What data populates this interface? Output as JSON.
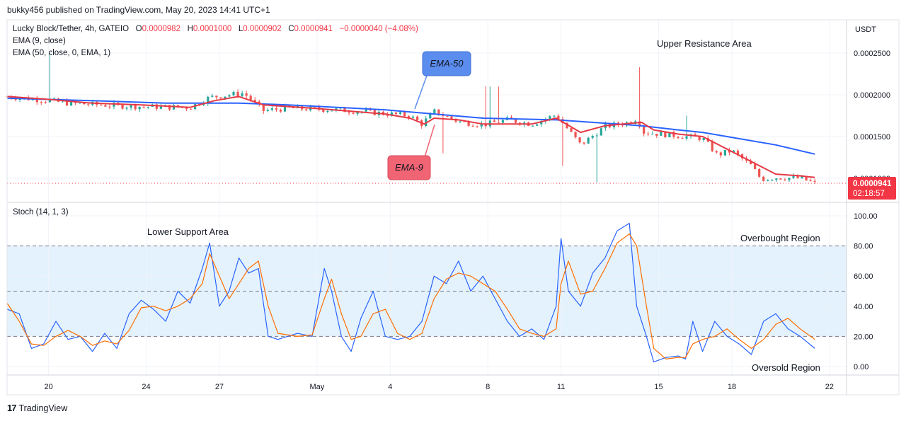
{
  "header": {
    "published": "bukky456 published on TradingView.com, May 20, 2023 14:41 UTC+1"
  },
  "legend": {
    "symbol": "Lucky Block/Tether, 4h, GATEIO",
    "o_label": "O",
    "o": "0.0000982",
    "h_label": "H",
    "h": "0.0001000",
    "l_label": "L",
    "l": "0.0000902",
    "c_label": "C",
    "c": "0.0000941",
    "change": "−0.0000040 (−4.08%)",
    "ema9": "EMA (9, close)",
    "ema50": "EMA (50, close, 0, EMA, 1)",
    "stoch": "Stoch (14, 1, 3)"
  },
  "price_scale": {
    "currency": "USDT",
    "current_price": "0.0000941",
    "countdown": "02:18:57"
  },
  "annotations": {
    "ema50_callout": "EMA-50",
    "ema9_callout": "EMA-9",
    "upper_resistance": "Upper Resistance Area",
    "lower_support": "Lower Support Area",
    "overbought": "Overbought Region",
    "oversold": "Oversold Region"
  },
  "colors": {
    "up": "#26a69a",
    "down": "#ef5350",
    "ema9": "#e53945",
    "ema50": "#2962ff",
    "stoch_k": "#2962ff",
    "stoch_d": "#ff6d00",
    "stoch_band": "#e3f2fd",
    "callout_blue": "#5b8def",
    "callout_red": "#f06473"
  },
  "brand": {
    "name": "TradingView"
  },
  "chart_data": [
    {
      "type": "candlestick",
      "title": "Lucky Block/Tether, 4h, GATEIO",
      "ylabel": "USDT",
      "ylim": [
        9e-05,
        0.00027
      ],
      "y_ticks": [
        0.0001,
        0.00015,
        0.0002,
        0.00025
      ],
      "y_tick_labels": [
        "0.0001000",
        "0.0001500",
        "0.0002000",
        "0.0002500"
      ],
      "x_ticks": [
        {
          "t": 0.2,
          "label": "20"
        },
        {
          "t": 4.2,
          "label": "24"
        },
        {
          "t": 7.2,
          "label": "27"
        },
        {
          "t": 11.2,
          "label": "May"
        },
        {
          "t": 14.2,
          "label": "4"
        },
        {
          "t": 18.2,
          "label": "8"
        },
        {
          "t": 21.2,
          "label": "11"
        },
        {
          "t": 25.2,
          "label": "15"
        },
        {
          "t": 28.2,
          "label": "18"
        },
        {
          "t": 32.2,
          "label": "22"
        }
      ],
      "x_range": [
        -1.5,
        32.9
      ],
      "close_anchors": [
        [
          -1.5,
          0.000198
        ],
        [
          0.2,
          0.000193
        ],
        [
          1,
          0.00019
        ],
        [
          3,
          0.000187
        ],
        [
          4,
          0.000186
        ],
        [
          6,
          0.000185
        ],
        [
          6.8,
          0.000197
        ],
        [
          8.2,
          0.000202
        ],
        [
          9,
          0.000181
        ],
        [
          10,
          0.000184
        ],
        [
          11,
          0.000183
        ],
        [
          12,
          0.000182
        ],
        [
          13,
          0.00018
        ],
        [
          15,
          0.000175
        ],
        [
          15.5,
          0.000165
        ],
        [
          16,
          0.00018
        ],
        [
          17,
          0.000168
        ],
        [
          18,
          0.000164
        ],
        [
          19,
          0.00017
        ],
        [
          20,
          0.000165
        ],
        [
          21,
          0.000176
        ],
        [
          22,
          0.00014
        ],
        [
          23,
          0.000162
        ],
        [
          24,
          0.000167
        ],
        [
          24.3,
          0.000172
        ],
        [
          24.6,
          0.000155
        ],
        [
          26,
          0.000151
        ],
        [
          27,
          0.000148
        ],
        [
          27.6,
          0.000128
        ],
        [
          28.2,
          0.000133
        ],
        [
          29,
          0.000115
        ],
        [
          29.4,
          9.9e-05
        ],
        [
          30,
          0.000101
        ],
        [
          31,
          0.0001
        ],
        [
          31.6,
          9.41e-05
        ]
      ],
      "spikes": [
        [
          0.2,
          0.00025
        ],
        [
          24.5,
          0.000233
        ],
        [
          22.7,
          9.5e-05
        ],
        [
          21.2,
          0.000115
        ],
        [
          18.6,
          0.00021
        ],
        [
          18.2,
          0.00021
        ],
        [
          16.3,
          0.00013
        ],
        [
          26.3,
          0.000175
        ]
      ],
      "ema9_points": [
        [
          -1.5,
          0.000198
        ],
        [
          0,
          0.000195
        ],
        [
          2,
          0.00019
        ],
        [
          4,
          0.000188
        ],
        [
          6,
          0.000185
        ],
        [
          7,
          0.000193
        ],
        [
          8,
          0.000198
        ],
        [
          9,
          0.000188
        ],
        [
          11,
          0.000184
        ],
        [
          14,
          0.000177
        ],
        [
          15,
          0.000172
        ],
        [
          15.6,
          0.000165
        ],
        [
          16,
          0.000172
        ],
        [
          17,
          0.00017
        ],
        [
          18,
          0.000165
        ],
        [
          20,
          0.000165
        ],
        [
          21,
          0.000172
        ],
        [
          22,
          0.000155
        ],
        [
          23,
          0.000163
        ],
        [
          24.5,
          0.000167
        ],
        [
          25,
          0.000158
        ],
        [
          26,
          0.000153
        ],
        [
          27,
          0.00015
        ],
        [
          28,
          0.000135
        ],
        [
          29,
          0.00012
        ],
        [
          30,
          0.000105
        ],
        [
          31,
          0.000103
        ],
        [
          31.6,
          0.000101
        ]
      ],
      "ema50_points": [
        [
          -1.5,
          0.000196
        ],
        [
          2,
          0.000193
        ],
        [
          5,
          0.00019
        ],
        [
          8,
          0.00019
        ],
        [
          10,
          0.000188
        ],
        [
          14,
          0.000182
        ],
        [
          16,
          0.000177
        ],
        [
          18,
          0.000172
        ],
        [
          21,
          0.00017
        ],
        [
          23,
          0.000166
        ],
        [
          24.5,
          0.000163
        ],
        [
          26,
          0.000158
        ],
        [
          27,
          0.000155
        ],
        [
          28,
          0.00015
        ],
        [
          30,
          0.00014
        ],
        [
          31.6,
          0.000129
        ]
      ]
    },
    {
      "type": "line",
      "title": "Stoch (14, 1, 3)",
      "ylim": [
        0,
        100
      ],
      "y_ticks": [
        0,
        20,
        40,
        60,
        80,
        100
      ],
      "y_tick_labels": [
        "0.00",
        "20.00",
        "40.00",
        "60.00",
        "80.00",
        "100.00"
      ],
      "band": [
        20,
        80
      ],
      "midline": 50,
      "series": [
        {
          "id": "k",
          "points": [
            [
              -1.5,
              38
            ],
            [
              -1,
              35
            ],
            [
              -0.5,
              12
            ],
            [
              0,
              15
            ],
            [
              0.5,
              30
            ],
            [
              1,
              18
            ],
            [
              1.5,
              20
            ],
            [
              2,
              10
            ],
            [
              2.5,
              22
            ],
            [
              3,
              12
            ],
            [
              3.5,
              35
            ],
            [
              4,
              44
            ],
            [
              4.5,
              38
            ],
            [
              5,
              30
            ],
            [
              5.5,
              50
            ],
            [
              6,
              42
            ],
            [
              6.5,
              65
            ],
            [
              6.8,
              82
            ],
            [
              7.2,
              40
            ],
            [
              7.6,
              50
            ],
            [
              8,
              72
            ],
            [
              8.4,
              62
            ],
            [
              8.8,
              65
            ],
            [
              9.2,
              20
            ],
            [
              9.6,
              18
            ],
            [
              10.4,
              22
            ],
            [
              11,
              20
            ],
            [
              11.5,
              65
            ],
            [
              11.8,
              50
            ],
            [
              12.2,
              20
            ],
            [
              12.6,
              10
            ],
            [
              13,
              32
            ],
            [
              13.5,
              50
            ],
            [
              14,
              20
            ],
            [
              14.5,
              18
            ],
            [
              15,
              20
            ],
            [
              15.5,
              30
            ],
            [
              16,
              60
            ],
            [
              16.5,
              55
            ],
            [
              17,
              70
            ],
            [
              17.5,
              50
            ],
            [
              18,
              60
            ],
            [
              18.5,
              45
            ],
            [
              19,
              30
            ],
            [
              19.5,
              20
            ],
            [
              20,
              25
            ],
            [
              20.5,
              18
            ],
            [
              21,
              40
            ],
            [
              21.2,
              85
            ],
            [
              21.5,
              50
            ],
            [
              22,
              40
            ],
            [
              22.5,
              62
            ],
            [
              23,
              72
            ],
            [
              23.5,
              90
            ],
            [
              24,
              95
            ],
            [
              24.3,
              40
            ],
            [
              24.7,
              20
            ],
            [
              25,
              3
            ],
            [
              25.5,
              6
            ],
            [
              26,
              7
            ],
            [
              26.3,
              5
            ],
            [
              26.6,
              30
            ],
            [
              27,
              10
            ],
            [
              27.5,
              30
            ],
            [
              28,
              20
            ],
            [
              28.5,
              15
            ],
            [
              29,
              8
            ],
            [
              29.5,
              30
            ],
            [
              30,
              35
            ],
            [
              30.5,
              25
            ],
            [
              31,
              20
            ],
            [
              31.6,
              12
            ]
          ]
        },
        {
          "id": "d",
          "points": [
            [
              -1.5,
              42
            ],
            [
              -1,
              30
            ],
            [
              -0.5,
              15
            ],
            [
              0,
              14
            ],
            [
              0.5,
              20
            ],
            [
              1,
              24
            ],
            [
              1.5,
              20
            ],
            [
              2,
              14
            ],
            [
              2.5,
              17
            ],
            [
              3,
              15
            ],
            [
              3.5,
              24
            ],
            [
              4,
              39
            ],
            [
              4.5,
              40
            ],
            [
              5,
              37
            ],
            [
              5.5,
              40
            ],
            [
              6,
              45
            ],
            [
              6.5,
              55
            ],
            [
              6.8,
              75
            ],
            [
              7.2,
              60
            ],
            [
              7.6,
              45
            ],
            [
              8,
              55
            ],
            [
              8.4,
              65
            ],
            [
              8.8,
              70
            ],
            [
              9.2,
              40
            ],
            [
              9.6,
              22
            ],
            [
              10.4,
              20
            ],
            [
              11,
              21
            ],
            [
              11.5,
              45
            ],
            [
              11.8,
              58
            ],
            [
              12.2,
              35
            ],
            [
              12.6,
              18
            ],
            [
              13,
              20
            ],
            [
              13.5,
              35
            ],
            [
              14,
              38
            ],
            [
              14.5,
              22
            ],
            [
              15,
              18
            ],
            [
              15.5,
              22
            ],
            [
              16,
              45
            ],
            [
              16.5,
              58
            ],
            [
              17,
              62
            ],
            [
              17.5,
              60
            ],
            [
              18,
              55
            ],
            [
              18.5,
              50
            ],
            [
              19,
              38
            ],
            [
              19.5,
              25
            ],
            [
              20,
              22
            ],
            [
              20.5,
              20
            ],
            [
              21,
              25
            ],
            [
              21.2,
              55
            ],
            [
              21.5,
              70
            ],
            [
              22,
              48
            ],
            [
              22.5,
              50
            ],
            [
              23,
              65
            ],
            [
              23.5,
              82
            ],
            [
              24,
              88
            ],
            [
              24.3,
              80
            ],
            [
              24.7,
              40
            ],
            [
              25,
              12
            ],
            [
              25.5,
              5
            ],
            [
              26,
              6
            ],
            [
              26.3,
              6
            ],
            [
              26.6,
              15
            ],
            [
              27,
              18
            ],
            [
              27.5,
              20
            ],
            [
              28,
              25
            ],
            [
              28.5,
              18
            ],
            [
              29,
              12
            ],
            [
              29.5,
              18
            ],
            [
              30,
              28
            ],
            [
              30.5,
              32
            ],
            [
              31,
              25
            ],
            [
              31.6,
              18
            ]
          ]
        }
      ]
    }
  ]
}
